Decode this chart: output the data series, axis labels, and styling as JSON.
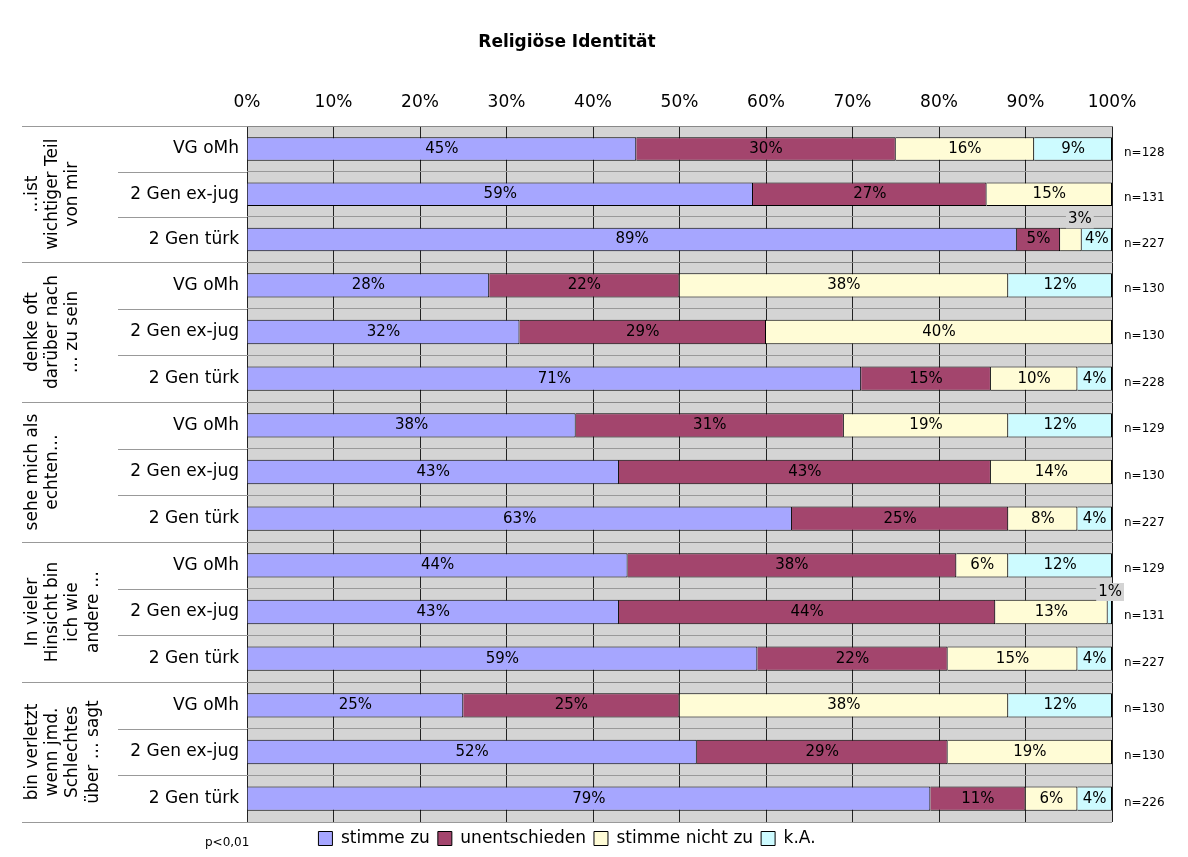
{
  "chart_data": [
    {
      "type": "bar",
      "orientation": "horizontal",
      "stacked": true,
      "title": "Religiöse Identität",
      "ylabel": "…ist wichtiger Teil von mir",
      "categories": [
        "VG oMh",
        "2 Gen ex-jug",
        "2 Gen türk"
      ],
      "series": [
        {
          "color": "#a6a6ff",
          "values": [
            45,
            58.5,
            89
          ],
          "value_labels": [
            "45%",
            "59%",
            "89%"
          ]
        },
        {
          "color": "#a3456d",
          "values": [
            30,
            27,
            5
          ],
          "value_labels": [
            "30%",
            "27%",
            "5%"
          ]
        },
        {
          "color": "#fffcd6",
          "values": [
            16,
            14.5,
            2.5
          ],
          "value_labels": [
            "16%",
            "15%",
            "3%"
          ]
        },
        {
          "color": "#cdfbff",
          "values": [
            9,
            0,
            3.5
          ],
          "value_labels": [
            "9%",
            null,
            "4%"
          ]
        }
      ],
      "xlim": [
        0,
        100
      ],
      "xticks": [
        {
          "value": 0,
          "label": "0%"
        },
        {
          "value": 10,
          "label": "10%"
        },
        {
          "value": 20,
          "label": "20%"
        },
        {
          "value": 30,
          "label": "30%"
        },
        {
          "value": 40,
          "label": "40%"
        },
        {
          "value": 50,
          "label": "50%"
        },
        {
          "value": 60,
          "label": "60%"
        },
        {
          "value": 70,
          "label": "70%"
        },
        {
          "value": 80,
          "label": "80%"
        },
        {
          "value": 90,
          "label": "90%"
        },
        {
          "value": 100,
          "label": "100%"
        }
      ],
      "grid": true,
      "annotations": [
        "n=128",
        "n=131",
        "n=227"
      ]
    },
    {
      "type": "bar",
      "orientation": "horizontal",
      "stacked": true,
      "ylabel": "denke oft darüber nach … zu sein",
      "tick_labels": "y",
      "categories": [
        "VG oMh",
        "2 Gen ex-jug",
        "2 Gen türk"
      ],
      "series": [
        {
          "color": "#a6a6ff",
          "values": [
            28,
            31.5,
            71
          ],
          "value_labels": [
            "28%",
            "32%",
            "71%"
          ]
        },
        {
          "color": "#a3456d",
          "values": [
            22,
            28.5,
            15
          ],
          "value_labels": [
            "22%",
            "29%",
            "15%"
          ]
        },
        {
          "color": "#fffcd6",
          "values": [
            38,
            40,
            10
          ],
          "value_labels": [
            "38%",
            "40%",
            "10%"
          ]
        },
        {
          "color": "#cdfbff",
          "values": [
            12,
            0,
            4
          ],
          "value_labels": [
            "12%",
            null,
            "4%"
          ]
        }
      ],
      "xlim": [
        0,
        100
      ],
      "xticks": [
        0,
        10,
        20,
        30,
        40,
        50,
        60,
        70,
        80,
        90,
        100
      ],
      "grid": true,
      "annotations": [
        "n=130",
        "n=130",
        "n=228"
      ]
    },
    {
      "type": "bar",
      "orientation": "horizontal",
      "stacked": true,
      "ylabel": "sehe mich als echten…",
      "tick_labels": "y",
      "categories": [
        "VG oMh",
        "2 Gen ex-jug",
        "2 Gen türk"
      ],
      "series": [
        {
          "color": "#a6a6ff",
          "values": [
            38,
            43,
            63
          ],
          "value_labels": [
            "38%",
            "43%",
            "63%"
          ]
        },
        {
          "color": "#a3456d",
          "values": [
            31,
            43,
            25
          ],
          "value_labels": [
            "31%",
            "43%",
            "25%"
          ]
        },
        {
          "color": "#fffcd6",
          "values": [
            19,
            14,
            8
          ],
          "value_labels": [
            "19%",
            "14%",
            "8%"
          ]
        },
        {
          "color": "#cdfbff",
          "values": [
            12,
            0,
            4
          ],
          "value_labels": [
            "12%",
            null,
            "4%"
          ]
        }
      ],
      "xlim": [
        0,
        100
      ],
      "xticks": [
        0,
        10,
        20,
        30,
        40,
        50,
        60,
        70,
        80,
        90,
        100
      ],
      "grid": true,
      "annotations": [
        "n=129",
        "n=130",
        "n=227"
      ]
    },
    {
      "type": "bar",
      "orientation": "horizontal",
      "stacked": true,
      "ylabel": "In vieler Hinsicht bin ich wie andere …",
      "tick_labels": "y",
      "categories": [
        "VG oMh",
        "2 Gen ex-jug",
        "2 Gen türk"
      ],
      "series": [
        {
          "color": "#a6a6ff",
          "values": [
            44,
            43,
            59
          ],
          "value_labels": [
            "44%",
            "43%",
            "59%"
          ]
        },
        {
          "color": "#a3456d",
          "values": [
            38,
            43.5,
            22
          ],
          "value_labels": [
            "38%",
            "44%",
            "22%"
          ]
        },
        {
          "color": "#fffcd6",
          "values": [
            6,
            13,
            15
          ],
          "value_labels": [
            "6%",
            "13%",
            "15%"
          ]
        },
        {
          "color": "#cdfbff",
          "values": [
            12,
            0.5,
            4
          ],
          "value_labels": [
            "12%",
            "1%",
            "4%"
          ]
        }
      ],
      "xlim": [
        0,
        100
      ],
      "xticks": [
        0,
        10,
        20,
        30,
        40,
        50,
        60,
        70,
        80,
        90,
        100
      ],
      "grid": true,
      "annotations": [
        "n=129",
        "n=131",
        "n=227"
      ]
    },
    {
      "type": "bar",
      "orientation": "horizontal",
      "stacked": true,
      "ylabel": "bin verletzt wenn jmd. Schlechtes über … sagt",
      "tick_labels": "y",
      "legend": "bottom",
      "categories": [
        "VG oMh",
        "2 Gen ex-jug",
        "2 Gen türk"
      ],
      "series": [
        {
          "name": "stimme zu",
          "color": "#a6a6ff",
          "values": [
            25,
            52,
            79
          ],
          "value_labels": [
            "25%",
            "52%",
            "79%"
          ]
        },
        {
          "name": "unentschieden",
          "color": "#a3456d",
          "values": [
            25,
            29,
            11
          ],
          "value_labels": [
            "25%",
            "29%",
            "11%"
          ]
        },
        {
          "name": "stimme nicht zu",
          "color": "#fffcd6",
          "values": [
            38,
            19,
            6
          ],
          "value_labels": [
            "38%",
            "19%",
            "6%"
          ]
        },
        {
          "name": "k.A.",
          "color": "#cdfbff",
          "values": [
            12,
            0,
            4
          ],
          "value_labels": [
            "12%",
            null,
            "4%"
          ]
        }
      ],
      "xlim": [
        0,
        100
      ],
      "xticks": [
        0,
        10,
        20,
        30,
        40,
        50,
        60,
        70,
        80,
        90,
        100
      ],
      "grid": true,
      "annotations": [
        "n=130",
        "n=130",
        "n=226",
        "p<0,01"
      ]
    }
  ]
}
